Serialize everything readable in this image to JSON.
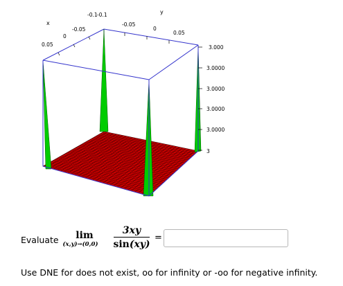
{
  "plot": {
    "axis_labels": {
      "x": "x",
      "y": "y"
    },
    "x_ticks": [
      "0.05",
      "0",
      "-0.05",
      "-0.1"
    ],
    "y_ticks": [
      "-0.1",
      "-0.05",
      "0",
      "0.05"
    ],
    "z_ticks": [
      "3.000",
      "3.0000",
      "3.0000",
      "3.0000",
      "3.0000",
      "3"
    ],
    "colors": {
      "surface": "#cc0000",
      "mesh": "#330000",
      "spikes": "#00cc00",
      "box": "#3333cc"
    }
  },
  "problem": {
    "prompt": "Evaluate",
    "limit_word": "lim",
    "limit_subscript": "(x,y)→(0,0)",
    "numerator": "3xy",
    "denominator_fn": "sin",
    "denominator_arg": "(xy)",
    "equals": "=",
    "answer_value": "",
    "answer_placeholder": ""
  },
  "instructions": "Use DNE for does not exist, oo for infinity or -oo for negative infinity."
}
